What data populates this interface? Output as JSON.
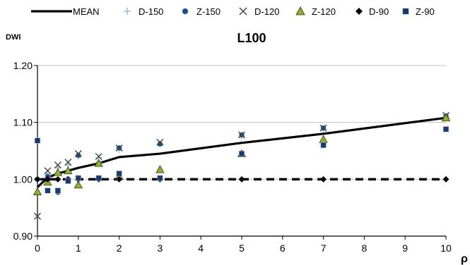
{
  "chart_data": {
    "type": "scatter",
    "title": "L100",
    "ylabel": "DWI",
    "xlabel": "ρ",
    "xlim": [
      0,
      10
    ],
    "ylim": [
      0.9,
      1.2
    ],
    "xticks": [
      0,
      1,
      2,
      3,
      4,
      5,
      6,
      7,
      8,
      9,
      10
    ],
    "yticks": [
      "0.90",
      "1.00",
      "1.10",
      "1.20"
    ],
    "grid": "horizontal",
    "legend_position": "top",
    "series": [
      {
        "name": "MEAN",
        "type": "line",
        "color": "#000000",
        "x": [
          0,
          0.25,
          0.5,
          0.75,
          1,
          1.5,
          2,
          3,
          5,
          7,
          10
        ],
        "y": [
          0.986,
          1.003,
          1.01,
          1.015,
          1.02,
          1.028,
          1.039,
          1.045,
          1.064,
          1.08,
          1.108
        ]
      },
      {
        "name": "D-150",
        "marker": "plus",
        "color": "#9dc3e6",
        "x": [
          0,
          0.25,
          0.5,
          0.75,
          1,
          1.5,
          2,
          3,
          5,
          7,
          10
        ],
        "y": [
          1.0,
          1.01,
          1.02,
          1.025,
          1.04,
          1.038,
          1.052,
          1.062,
          1.075,
          1.088,
          1.11
        ]
      },
      {
        "name": "Z-150",
        "marker": "circle",
        "color": "#1f4e79",
        "x": [
          0,
          0.25,
          0.5,
          0.75,
          1,
          1.5,
          2,
          3,
          5,
          7,
          10
        ],
        "y": [
          1.0,
          1.005,
          0.977,
          1.0,
          1.042,
          1.028,
          1.055,
          1.062,
          1.078,
          1.09,
          1.111
        ]
      },
      {
        "name": "D-120",
        "marker": "x",
        "color": "#404040",
        "x": [
          0,
          0.25,
          0.5,
          0.75,
          1,
          1.5,
          2,
          3,
          5,
          7,
          10
        ],
        "y": [
          0.935,
          1.015,
          1.025,
          1.03,
          1.045,
          1.04,
          1.055,
          1.065,
          1.078,
          1.09,
          1.112
        ]
      },
      {
        "name": "Z-120",
        "marker": "triangle",
        "color": "#8db030",
        "x": [
          0,
          0.25,
          0.5,
          0.75,
          1,
          1.5,
          2,
          3,
          5,
          7,
          10
        ],
        "y": [
          0.978,
          0.995,
          1.012,
          1.015,
          0.99,
          1.028,
          1.005,
          1.017,
          1.045,
          1.07,
          1.108
        ]
      },
      {
        "name": "D-90",
        "marker": "diamond",
        "color": "#000000",
        "x": [
          0,
          0.25,
          0.5,
          0.75,
          1,
          1.5,
          2,
          3,
          5,
          7,
          10
        ],
        "y": [
          1.0,
          1.0,
          1.0,
          1.0,
          1.0,
          1.0,
          1.0,
          1.0,
          1.0,
          1.0,
          1.0
        ]
      },
      {
        "name": "Z-90",
        "marker": "square",
        "color": "#1f3864",
        "x": [
          0,
          0.25,
          0.5,
          0.75,
          1,
          1.5,
          2,
          3,
          5,
          7,
          10
        ],
        "y": [
          1.068,
          0.98,
          0.98,
          0.997,
          1.002,
          1.002,
          1.01,
          1.002,
          1.045,
          1.06,
          1.088
        ]
      }
    ],
    "reference_line": {
      "y": 1.0,
      "style": "dashed",
      "color": "#000000"
    }
  }
}
